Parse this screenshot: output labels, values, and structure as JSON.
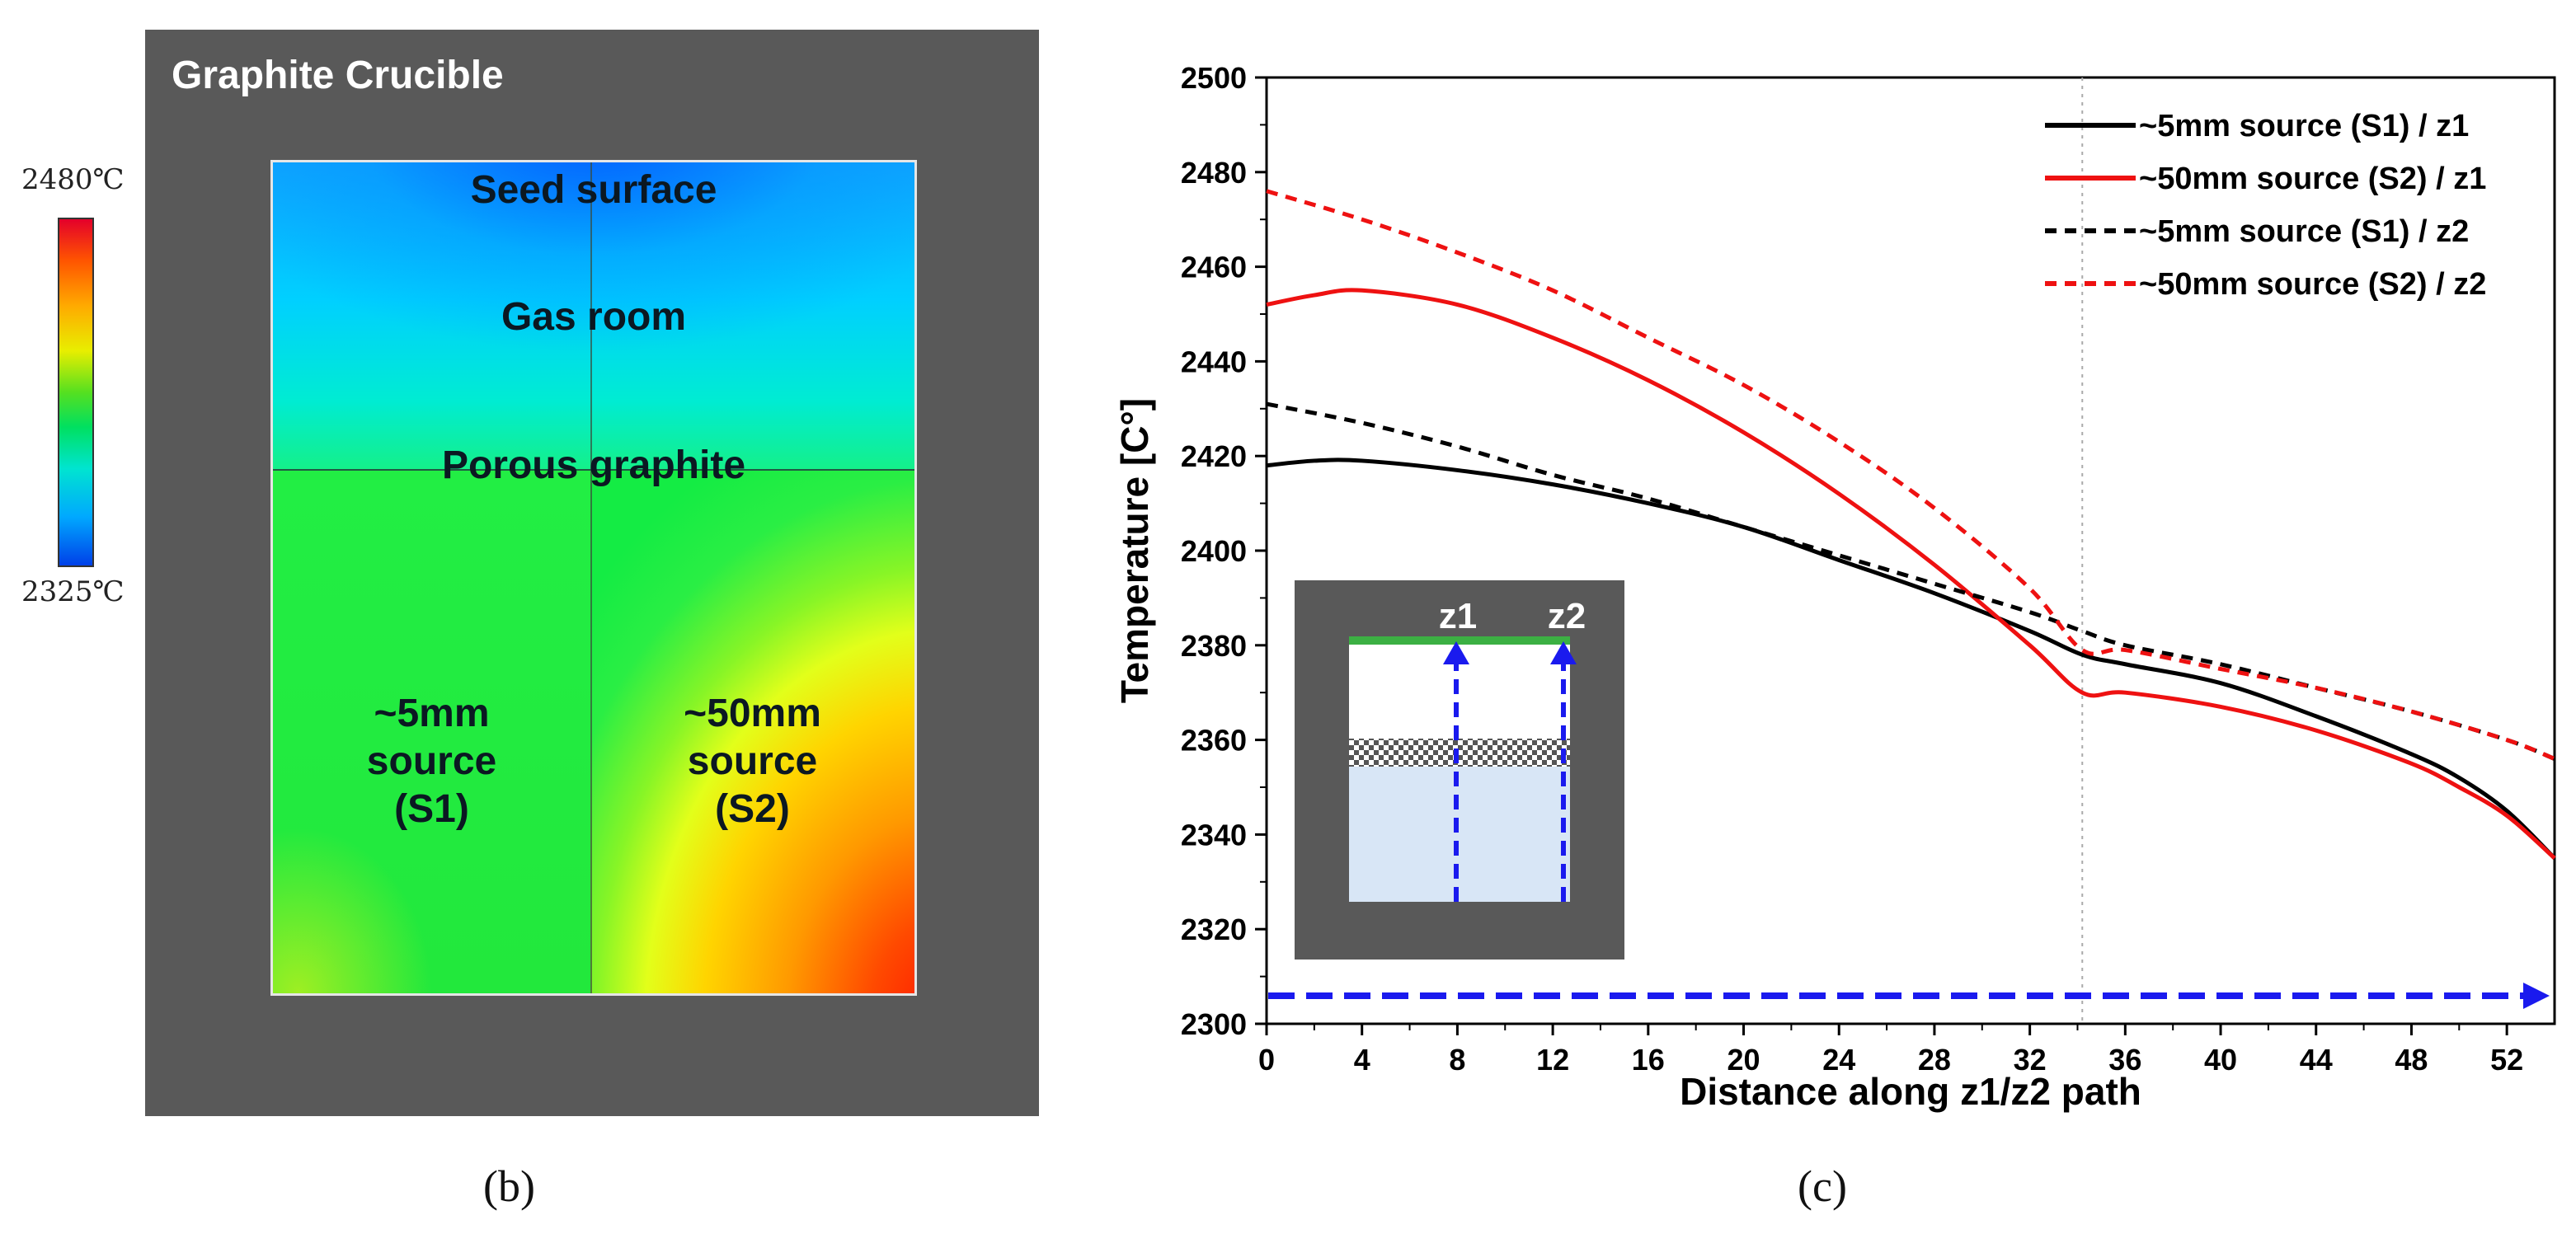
{
  "panel_b": {
    "title": "Graphite Crucible",
    "labels": {
      "seed_surface": "Seed surface",
      "gas_room": "Gas room",
      "porous_graphite": "Porous graphite",
      "source1": [
        "~5mm",
        "source",
        "(S1)"
      ],
      "source2": [
        "~50mm",
        "source",
        "(S2)"
      ]
    },
    "colorbar": {
      "max_label": "2480℃",
      "min_label": "2325℃",
      "max": 2480,
      "min": 2325
    },
    "letter": "(b)"
  },
  "panel_c": {
    "letter": "(c)"
  },
  "colors": {
    "black": "#000000",
    "red": "#ee1111",
    "blue": "#1a1aee",
    "gray": "#595959",
    "green": "#3cb043",
    "light_blue": "#d8e6f6"
  },
  "chart_data": {
    "type": "line",
    "xlabel": "Distance along z1/z2 path",
    "ylabel": "Temperature [C°]",
    "xlim": [
      0,
      54
    ],
    "ylim": [
      2300,
      2500
    ],
    "xticks": [
      0,
      4,
      8,
      12,
      16,
      20,
      24,
      28,
      32,
      36,
      40,
      44,
      48,
      52
    ],
    "yticks": [
      2300,
      2320,
      2340,
      2360,
      2380,
      2400,
      2420,
      2440,
      2460,
      2480,
      2500
    ],
    "boundary_x": 34.2,
    "series": [
      {
        "name": "~5mm source (S1) / z1",
        "color": "#000000",
        "style": "solid",
        "x": [
          0,
          2,
          4,
          8,
          12,
          16,
          20,
          24,
          28,
          32,
          34.2,
          36,
          40,
          44,
          48,
          50,
          52,
          54
        ],
        "y": [
          2418,
          2419,
          2419,
          2417,
          2414,
          2410,
          2405,
          2398,
          2391,
          2383,
          2378,
          2376,
          2372,
          2365,
          2357,
          2352,
          2345,
          2335
        ]
      },
      {
        "name": "~50mm source (S2) / z1",
        "color": "#ee1111",
        "style": "solid",
        "x": [
          0,
          2,
          4,
          8,
          12,
          16,
          20,
          24,
          28,
          32,
          34.2,
          36,
          40,
          44,
          48,
          50,
          52,
          54
        ],
        "y": [
          2452,
          2454,
          2455,
          2452,
          2445,
          2436,
          2425,
          2412,
          2397,
          2380,
          2370,
          2370,
          2367,
          2362,
          2355,
          2350,
          2344,
          2335
        ]
      },
      {
        "name": "~5mm source (S1) / z2",
        "color": "#000000",
        "style": "dashed",
        "x": [
          0,
          4,
          8,
          12,
          16,
          20,
          24,
          28,
          32,
          34.2,
          36,
          40,
          44,
          48,
          52,
          54
        ],
        "y": [
          2431,
          2427,
          2422,
          2416,
          2411,
          2405,
          2399,
          2393,
          2387,
          2383,
          2380,
          2376,
          2371,
          2366,
          2360,
          2356
        ]
      },
      {
        "name": "~50mm source (S2) / z2",
        "color": "#ee1111",
        "style": "dashed",
        "x": [
          0,
          4,
          8,
          12,
          16,
          20,
          24,
          28,
          32,
          34.2,
          36,
          40,
          44,
          48,
          52,
          54
        ],
        "y": [
          2476,
          2470,
          2463,
          2455,
          2445,
          2435,
          2423,
          2409,
          2392,
          2379,
          2379,
          2375,
          2371,
          2366,
          2360,
          2356
        ]
      }
    ],
    "legend_position": "top-right",
    "inset": {
      "labels": [
        "z1",
        "z2"
      ]
    }
  }
}
